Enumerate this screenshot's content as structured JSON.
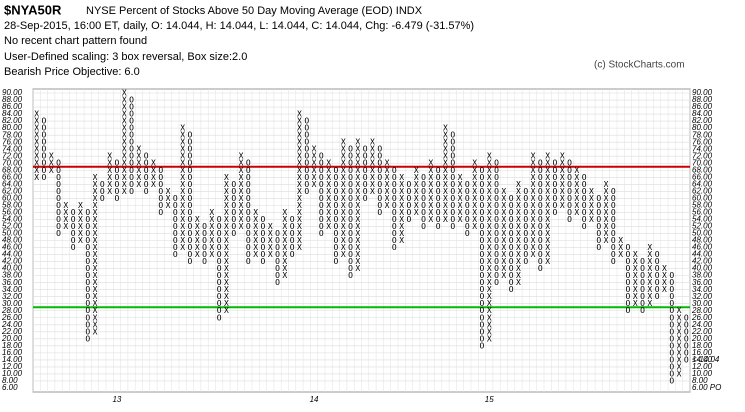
{
  "chart_data": {
    "type": "point-and-figure",
    "symbol": "$NYA50R",
    "title": "NYSE Percent of Stocks Above 50 Day Moving Average (EOD)  INDX",
    "subtitle": "28-Sep-2015, 16:00 ET, daily, O: 14.044, H: 14.044, L: 14.044, C: 14.044, Chg: -6.479 (-31.57%)",
    "annotations": [
      "No recent chart pattern found",
      "User-Defined scaling: 3 box reversal, Box size:2.0",
      "Bearish Price Objective: 6.0"
    ],
    "credit": "(c) StockCharts.com",
    "box_size": 2,
    "ylim": [
      6,
      90
    ],
    "yticks": [
      {
        "value": 90,
        "label": "90.00"
      },
      {
        "value": 88,
        "label": "88.00"
      },
      {
        "value": 86,
        "label": "86.00"
      },
      {
        "value": 84,
        "label": "84.00"
      },
      {
        "value": 82,
        "label": "82.00"
      },
      {
        "value": 80,
        "label": "80.00"
      },
      {
        "value": 78,
        "label": "78.00"
      },
      {
        "value": 76,
        "label": "76.00"
      },
      {
        "value": 74,
        "label": "74.00"
      },
      {
        "value": 72,
        "label": "72.00"
      },
      {
        "value": 70,
        "label": "70.00"
      },
      {
        "value": 68,
        "label": "68.00"
      },
      {
        "value": 66,
        "label": "66.00"
      },
      {
        "value": 64,
        "label": "64.00"
      },
      {
        "value": 62,
        "label": "62.00"
      },
      {
        "value": 60,
        "label": "60.00"
      },
      {
        "value": 58,
        "label": "58.00"
      },
      {
        "value": 56,
        "label": "56.00"
      },
      {
        "value": 54,
        "label": "54.00"
      },
      {
        "value": 52,
        "label": "52.00"
      },
      {
        "value": 50,
        "label": "50.00"
      },
      {
        "value": 48,
        "label": "48.00"
      },
      {
        "value": 46,
        "label": "46.00"
      },
      {
        "value": 44,
        "label": "44.00"
      },
      {
        "value": 42,
        "label": "42.00"
      },
      {
        "value": 40,
        "label": "40.00"
      },
      {
        "value": 38,
        "label": "38.00"
      },
      {
        "value": 36,
        "label": "36.00"
      },
      {
        "value": 34,
        "label": "34.00"
      },
      {
        "value": 32,
        "label": "32.00"
      },
      {
        "value": 30,
        "label": "30.00"
      },
      {
        "value": 28,
        "label": "28.00"
      },
      {
        "value": 26,
        "label": "26.00"
      },
      {
        "value": 24,
        "label": "24.00"
      },
      {
        "value": 22,
        "label": "22.00"
      },
      {
        "value": 20,
        "label": "20.00"
      },
      {
        "value": 18,
        "label": "18.00"
      },
      {
        "value": 16,
        "label": "16.00"
      },
      {
        "value": 14,
        "label": "14.00"
      },
      {
        "value": 12,
        "label": "12.00"
      },
      {
        "value": 10,
        "label": "10.00"
      },
      {
        "value": 8,
        "label": "8.00"
      }
    ],
    "left_marker": {
      "value": 6,
      "label": "6.00",
      "color": "#cc0000"
    },
    "last_price": {
      "value": 14.04,
      "label": "<-14.04",
      "color": "#cc0000"
    },
    "price_objective": {
      "value": 6,
      "label": "6.00 PO",
      "color": "#cc0000"
    },
    "reference_lines": [
      {
        "value": 69,
        "color": "#cc0000"
      },
      {
        "value": 29,
        "color": "#00bb00"
      }
    ],
    "year_labels": [
      {
        "column": 11,
        "label": "13"
      },
      {
        "column": 38,
        "label": "14"
      },
      {
        "column": 62,
        "label": "15"
      }
    ],
    "columns": [
      {
        "type": "X",
        "low": 66,
        "high": 84
      },
      {
        "type": "O",
        "low": 66,
        "high": 82
      },
      {
        "type": "X",
        "low": 68,
        "high": 72
      },
      {
        "type": "O",
        "low": 50,
        "high": 70
      },
      {
        "type": "X",
        "low": 52,
        "high": 58
      },
      {
        "type": "O",
        "low": 46,
        "high": 56
      },
      {
        "type": "X",
        "low": 48,
        "high": 58
      },
      {
        "type": "O",
        "low": 20,
        "high": 56
      },
      {
        "type": "X",
        "low": 22,
        "high": 66
      },
      {
        "type": "O",
        "low": 60,
        "high": 64
      },
      {
        "type": "X",
        "low": 62,
        "high": 72
      },
      {
        "type": "O",
        "low": 60,
        "high": 70
      },
      {
        "type": "X",
        "low": 62,
        "high": 90
      },
      {
        "type": "O",
        "low": 62,
        "high": 88
      },
      {
        "type": "X",
        "low": 64,
        "high": 74
      },
      {
        "type": "O",
        "low": 62,
        "high": 72
      },
      {
        "type": "X",
        "low": 64,
        "high": 70
      },
      {
        "type": "O",
        "low": 56,
        "high": 68
      },
      {
        "type": "X",
        "low": 58,
        "high": 62
      },
      {
        "type": "O",
        "low": 44,
        "high": 60
      },
      {
        "type": "X",
        "low": 46,
        "high": 80
      },
      {
        "type": "O",
        "low": 42,
        "high": 78
      },
      {
        "type": "X",
        "low": 44,
        "high": 54
      },
      {
        "type": "O",
        "low": 42,
        "high": 52
      },
      {
        "type": "X",
        "low": 44,
        "high": 56
      },
      {
        "type": "O",
        "low": 26,
        "high": 54
      },
      {
        "type": "X",
        "low": 28,
        "high": 66
      },
      {
        "type": "O",
        "low": 50,
        "high": 64
      },
      {
        "type": "X",
        "low": 52,
        "high": 72
      },
      {
        "type": "O",
        "low": 42,
        "high": 70
      },
      {
        "type": "X",
        "low": 44,
        "high": 56
      },
      {
        "type": "O",
        "low": 42,
        "high": 54
      },
      {
        "type": "X",
        "low": 44,
        "high": 52
      },
      {
        "type": "O",
        "low": 36,
        "high": 50
      },
      {
        "type": "X",
        "low": 38,
        "high": 56
      },
      {
        "type": "O",
        "low": 44,
        "high": 54
      },
      {
        "type": "X",
        "low": 46,
        "high": 84
      },
      {
        "type": "O",
        "low": 62,
        "high": 82
      },
      {
        "type": "X",
        "low": 64,
        "high": 74
      },
      {
        "type": "O",
        "low": 50,
        "high": 72
      },
      {
        "type": "X",
        "low": 52,
        "high": 70
      },
      {
        "type": "O",
        "low": 42,
        "high": 68
      },
      {
        "type": "X",
        "low": 44,
        "high": 76
      },
      {
        "type": "O",
        "low": 38,
        "high": 74
      },
      {
        "type": "X",
        "low": 40,
        "high": 76
      },
      {
        "type": "O",
        "low": 60,
        "high": 74
      },
      {
        "type": "X",
        "low": 62,
        "high": 76
      },
      {
        "type": "O",
        "low": 56,
        "high": 74
      },
      {
        "type": "X",
        "low": 58,
        "high": 70
      },
      {
        "type": "O",
        "low": 46,
        "high": 68
      },
      {
        "type": "X",
        "low": 48,
        "high": 66
      },
      {
        "type": "O",
        "low": 54,
        "high": 64
      },
      {
        "type": "X",
        "low": 56,
        "high": 68
      },
      {
        "type": "O",
        "low": 52,
        "high": 66
      },
      {
        "type": "X",
        "low": 54,
        "high": 70
      },
      {
        "type": "O",
        "low": 52,
        "high": 68
      },
      {
        "type": "X",
        "low": 54,
        "high": 80
      },
      {
        "type": "O",
        "low": 52,
        "high": 78
      },
      {
        "type": "X",
        "low": 54,
        "high": 66
      },
      {
        "type": "O",
        "low": 50,
        "high": 64
      },
      {
        "type": "X",
        "low": 52,
        "high": 70
      },
      {
        "type": "O",
        "low": 18,
        "high": 68
      },
      {
        "type": "X",
        "low": 20,
        "high": 72
      },
      {
        "type": "O",
        "low": 36,
        "high": 70
      },
      {
        "type": "X",
        "low": 38,
        "high": 62
      },
      {
        "type": "O",
        "low": 34,
        "high": 60
      },
      {
        "type": "X",
        "low": 36,
        "high": 64
      },
      {
        "type": "O",
        "low": 42,
        "high": 62
      },
      {
        "type": "X",
        "low": 44,
        "high": 72
      },
      {
        "type": "O",
        "low": 40,
        "high": 70
      },
      {
        "type": "X",
        "low": 42,
        "high": 72
      },
      {
        "type": "O",
        "low": 56,
        "high": 70
      },
      {
        "type": "X",
        "low": 58,
        "high": 72
      },
      {
        "type": "O",
        "low": 54,
        "high": 70
      },
      {
        "type": "X",
        "low": 56,
        "high": 68
      },
      {
        "type": "O",
        "low": 52,
        "high": 66
      },
      {
        "type": "X",
        "low": 54,
        "high": 62
      },
      {
        "type": "O",
        "low": 46,
        "high": 60
      },
      {
        "type": "X",
        "low": 48,
        "high": 64
      },
      {
        "type": "O",
        "low": 42,
        "high": 62
      },
      {
        "type": "X",
        "low": 44,
        "high": 48
      },
      {
        "type": "O",
        "low": 28,
        "high": 46
      },
      {
        "type": "X",
        "low": 30,
        "high": 44
      },
      {
        "type": "O",
        "low": 28,
        "high": 42
      },
      {
        "type": "X",
        "low": 30,
        "high": 46
      },
      {
        "type": "O",
        "low": 32,
        "high": 44
      },
      {
        "type": "X",
        "low": 34,
        "high": 40
      },
      {
        "type": "O",
        "low": 8,
        "high": 38
      },
      {
        "type": "X",
        "low": 10,
        "high": 28
      },
      {
        "type": "O",
        "low": 14,
        "high": 26
      }
    ]
  }
}
